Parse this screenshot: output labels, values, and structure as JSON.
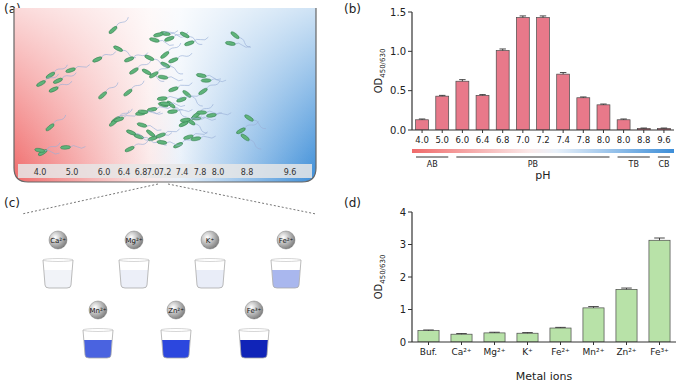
{
  "panel_labels": [
    "(a)",
    "(b)",
    "(c)",
    "(d)"
  ],
  "diagram_a": {
    "ph_labels": [
      "4.0",
      "5.0",
      "6.0",
      "6.4",
      "6.8",
      "7.0",
      "7.2",
      "7.4",
      "7.8",
      "8.0",
      "8.8",
      "9.6"
    ]
  },
  "diagram_c": {
    "ions": [
      {
        "label": "Ca²⁺",
        "color": "#f1f3f8"
      },
      {
        "label": "Mg²⁺",
        "color": "#eceff8"
      },
      {
        "label": "K⁺",
        "color": "#e9edf8"
      },
      {
        "label": "Fe²⁺",
        "color": "#a9b7ee"
      },
      {
        "label": "Mn²⁺",
        "color": "#4a63e0"
      },
      {
        "label": "Zn²⁺",
        "color": "#2c47de"
      },
      {
        "label": "Fe³⁺",
        "color": "#1024b8"
      }
    ]
  },
  "chart_data": [
    {
      "type": "bar",
      "categories": [
        "4.0",
        "5.0",
        "6.0",
        "6.4",
        "6.8",
        "7.0",
        "7.2",
        "7.4",
        "7.8",
        "8.0",
        "8.0",
        "8.8",
        "9.6"
      ],
      "values": [
        0.13,
        0.43,
        0.62,
        0.44,
        1.01,
        1.43,
        1.43,
        0.71,
        0.41,
        0.32,
        0.13,
        0.02,
        0.02
      ],
      "errors": [
        0.01,
        0.01,
        0.02,
        0.01,
        0.02,
        0.02,
        0.02,
        0.02,
        0.01,
        0.01,
        0.01,
        0.005,
        0.005
      ],
      "color": "#e8798a",
      "xlabel": "pH",
      "ylabel": {
        "text": "OD",
        "subscript": "450/630"
      },
      "ylim": [
        0,
        1.5
      ],
      "yticks": [
        {
          "value": 0,
          "label": "0.0"
        },
        0.5,
        {
          "value": 1,
          "label": "1.0"
        },
        1.5
      ],
      "grid": false,
      "buffers": [
        {
          "label": "AB",
          "start": 0,
          "end": 1
        },
        {
          "label": "PB",
          "start": 2,
          "end": 9
        },
        {
          "label": "TB",
          "start": 10,
          "end": 11
        },
        {
          "label": "CB",
          "start": 12,
          "end": 12
        }
      ]
    },
    {
      "type": "bar",
      "categories": [
        "Buf.",
        "Ca²⁺",
        "Mg²⁺",
        "K⁺",
        "Fe²⁺",
        "Mn²⁺",
        "Zn²⁺",
        "Fe³⁺"
      ],
      "values": [
        0.35,
        0.24,
        0.28,
        0.27,
        0.43,
        1.05,
        1.62,
        3.13
      ],
      "errors": [
        0.02,
        0.02,
        0.02,
        0.02,
        0.02,
        0.04,
        0.04,
        0.07
      ],
      "color": "#b8e2a8",
      "xlabel": "Metal ions",
      "ylabel": {
        "text": "OD",
        "subscript": "450/630"
      },
      "ylim": [
        0,
        4
      ],
      "yticks": [
        0,
        1,
        2,
        3,
        4
      ],
      "grid": false
    }
  ]
}
